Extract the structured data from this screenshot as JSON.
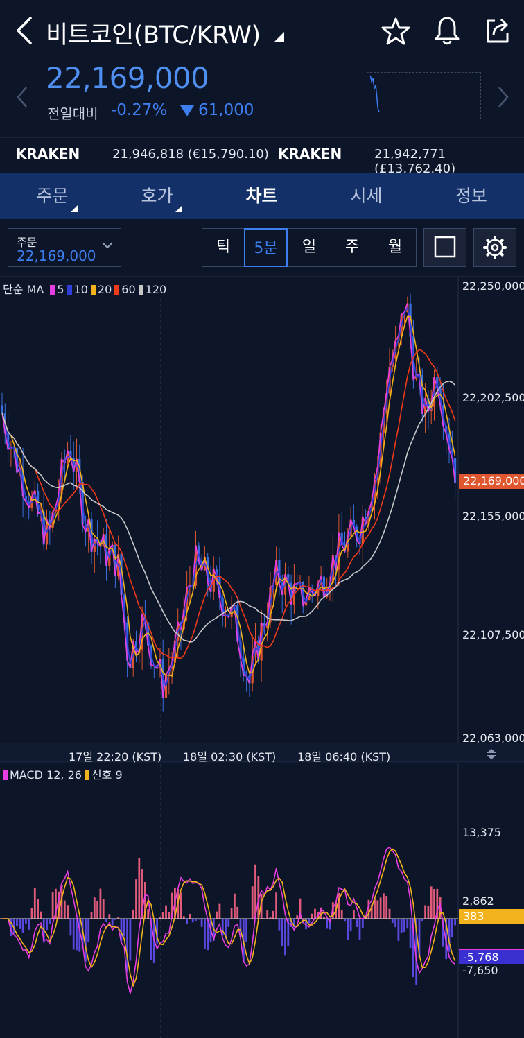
{
  "header": {
    "title": "비트코인(BTC/KRW)",
    "icons": [
      "back-icon",
      "dropdown-caret-icon",
      "star-icon",
      "bell-icon",
      "share-icon"
    ]
  },
  "price": {
    "current": "22,169,000",
    "change_label": "전일대비",
    "change_pct": "-0.27%",
    "change_amount": "61,000",
    "change_color": "#3d7ef0"
  },
  "exchanges": [
    {
      "name": "KRAKEN",
      "value": "21,946,818 (€15,790.10)"
    },
    {
      "name": "KRAKEN",
      "value": "21,942,771 (£13,762.40)"
    }
  ],
  "tabs": [
    {
      "label": "주문",
      "active": false
    },
    {
      "label": "호가",
      "active": false
    },
    {
      "label": "차트",
      "active": true
    },
    {
      "label": "시세",
      "active": false
    },
    {
      "label": "정보",
      "active": false
    }
  ],
  "order_select": {
    "label": "주문",
    "value": "22,169,000"
  },
  "periods": [
    "틱",
    "5분",
    "일",
    "주",
    "월"
  ],
  "active_period": "5분",
  "colors": {
    "up": "#e0562e",
    "down": "#3a6fe0",
    "ma5": "#e63ee0",
    "ma10": "#2f3fd8",
    "ma20": "#f2b21b",
    "ma60": "#f03a18",
    "ma120": "#c8c8c8",
    "macd": "#e63ee0",
    "signal": "#f2b21b",
    "background": "#0d1529"
  },
  "legend_ma": {
    "prefix": "단순 MA",
    "items": [
      {
        "label": "5",
        "color": "#e63ee0"
      },
      {
        "label": "10",
        "color": "#2f3fd8"
      },
      {
        "label": "20",
        "color": "#f2b21b"
      },
      {
        "label": "60",
        "color": "#f03a18"
      },
      {
        "label": "120",
        "color": "#c8c8c8"
      }
    ]
  },
  "legend_macd": {
    "items": [
      {
        "label": "MACD 12, 26",
        "color": "#e63ee0"
      },
      {
        "label": "신호 9",
        "color": "#f2b21b"
      }
    ]
  },
  "chart_data": [
    {
      "type": "candlestick",
      "y_ticks": [
        "22,250,000",
        "22,202,500",
        "22,155,000",
        "22,107,500",
        "22,063,000"
      ],
      "ylim": [
        22063000,
        22250000
      ],
      "x_ticks": [
        "17일 22:20 (KST)",
        "18일 02:30 (KST)",
        "18일 06:40 (KST)"
      ],
      "current_price_tag": "22,169,000",
      "ma_periods": [
        5,
        10,
        20,
        60,
        120
      ]
    },
    {
      "type": "line",
      "title": "MACD 12, 26",
      "y_ticks": [
        "13,375",
        "2,862",
        "-7,650"
      ],
      "signal_tag": "383",
      "macd_tag": "-5,768"
    }
  ]
}
